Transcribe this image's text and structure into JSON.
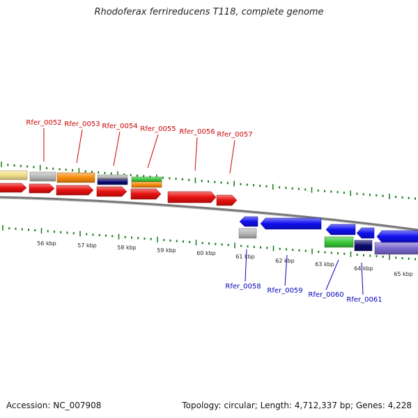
{
  "title": "Rhodoferax ferrireducens T118, complete genome",
  "footer": {
    "accession": "Accession: NC_007908",
    "stats": "Topology: circular; Length: 4,712,337 bp; Genes: 4,228"
  },
  "colors": {
    "forward_label": "#cc0000",
    "reverse_label": "#0000bb",
    "tick": "#117711",
    "red": "#e81010",
    "blue": "#1010ee",
    "orange": "#f98c0c",
    "green": "#3ac83a",
    "navy": "#0a0a6e",
    "gray": "#b8b8b8",
    "khaki": "#f2e08a",
    "purple": "#7a6ad0"
  },
  "scale_labels": [
    "56 kbp",
    "57 kbp",
    "58 kbp",
    "59 kbp",
    "60 kbp",
    "61 kbp",
    "62 kbp",
    "63 kbp",
    "64 kbp",
    "65 kbp"
  ],
  "forward_genes": [
    "Rfer_0052",
    "Rfer_0053",
    "Rfer_0054",
    "Rfer_0055",
    "Rfer_0056",
    "Rfer_0057"
  ],
  "reverse_genes": [
    "Rfer_0058",
    "Rfer_0059",
    "Rfer_0060",
    "Rfer_0061"
  ]
}
